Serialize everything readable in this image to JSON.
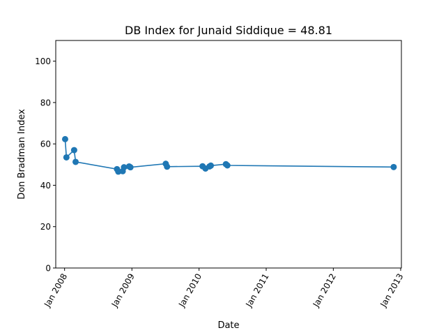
{
  "chart_data": {
    "type": "line",
    "title": "DB Index for Junaid Siddique = 48.81",
    "xlabel": "Date",
    "ylabel": "Don Bradman Index",
    "xlim": [
      "2007-11-14",
      "2013-01-05"
    ],
    "ylim": [
      0,
      110
    ],
    "x_ticks": [
      {
        "date": "2008-01-01",
        "label": "Jan 2008"
      },
      {
        "date": "2009-01-01",
        "label": "Jan 2009"
      },
      {
        "date": "2010-01-01",
        "label": "Jan 2010"
      },
      {
        "date": "2011-01-01",
        "label": "Jan 2011"
      },
      {
        "date": "2012-01-01",
        "label": "Jan 2012"
      },
      {
        "date": "2013-01-01",
        "label": "Jan 2013"
      }
    ],
    "y_ticks": [
      0,
      20,
      40,
      60,
      80,
      100
    ],
    "grid": false,
    "color": "#1f77b4",
    "series": [
      {
        "x": [
          "2008-01-04",
          "2008-01-11",
          "2008-02-22",
          "2008-03-01",
          "2008-10-12",
          "2008-10-19",
          "2008-11-12",
          "2008-11-19",
          "2008-12-17",
          "2008-12-24",
          "2009-07-04",
          "2009-07-11",
          "2010-01-20",
          "2010-02-05",
          "2010-02-27",
          "2010-03-06",
          "2010-05-27",
          "2010-06-04",
          "2012-11-24"
        ],
        "y": [
          62.3,
          53.5,
          57.0,
          51.3,
          47.8,
          46.6,
          46.8,
          48.7,
          49.1,
          48.7,
          50.4,
          49.0,
          49.2,
          48.1,
          49.1,
          49.5,
          50.2,
          49.6,
          48.81
        ]
      }
    ]
  }
}
